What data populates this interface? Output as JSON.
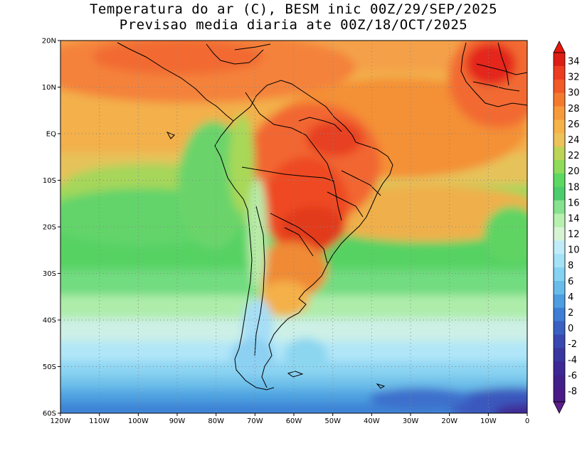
{
  "header": {
    "title_line1": "Temperatura do ar (C), BESM inic 00Z/29/SEP/2025",
    "title_line2": "Previsao media diaria ate 00Z/18/OCT/2025"
  },
  "map": {
    "lat_labels": [
      "20N",
      "10N",
      "EQ",
      "10S",
      "20S",
      "30S",
      "40S",
      "50S",
      "60S"
    ],
    "lat_values": [
      20,
      10,
      0,
      -10,
      -20,
      -30,
      -40,
      -50,
      -60
    ],
    "lon_labels": [
      "120W",
      "110W",
      "100W",
      "90W",
      "80W",
      "70W",
      "60W",
      "50W",
      "40W",
      "30W",
      "20W",
      "10W",
      "0"
    ],
    "lon_values": [
      -120,
      -110,
      -100,
      -90,
      -80,
      -70,
      -60,
      -50,
      -40,
      -30,
      -20,
      -10,
      0
    ],
    "extent": {
      "lon": [
        -120,
        0
      ],
      "lat": [
        -60,
        20
      ]
    },
    "grid": "dotted",
    "projection": "lat-lon"
  },
  "colorbar": {
    "placement": "right",
    "labels": [
      "34",
      "32",
      "30",
      "28",
      "26",
      "24",
      "22",
      "20",
      "18",
      "16",
      "14",
      "12",
      "10",
      "8",
      "6",
      "4",
      "2",
      "0",
      "-2",
      "-4",
      "-6",
      "-8"
    ],
    "colors": [
      "#dc1e14",
      "#ee3c20",
      "#f25a28",
      "#f47a30",
      "#f69a3c",
      "#f5b34a",
      "#eec25a",
      "#bcd458",
      "#8fdb5c",
      "#5ed862",
      "#4ccc6c",
      "#86e28e",
      "#b8f0b0",
      "#d6f4d4",
      "#c0ecfa",
      "#a4e2f6",
      "#86d2f2",
      "#68bcea",
      "#4c9ee0",
      "#3e7ed4",
      "#3960c2",
      "#3848b0",
      "#3a36a0",
      "#3e2894",
      "#42208a",
      "#4a1a86"
    ],
    "upper_arrow_color": "#e8160c",
    "lower_arrow_color": "#5a1e8a"
  }
}
